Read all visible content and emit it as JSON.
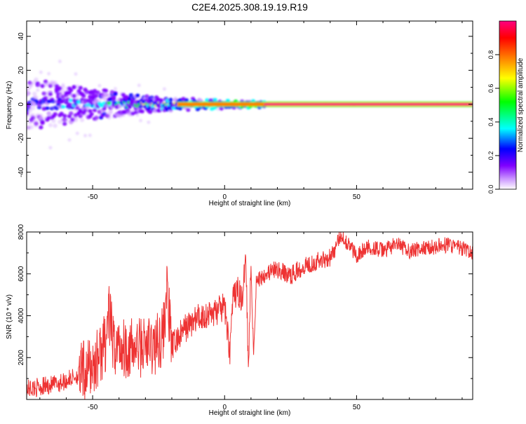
{
  "title": "C2E4.2025.308.19.19.R19",
  "chart_data": [
    {
      "type": "heatmap",
      "xlabel": "Height of straight line (km)",
      "ylabel": "Frequency (Hz)",
      "xlim": [
        -75,
        94
      ],
      "ylim": [
        -50,
        49
      ],
      "x_ticks": [
        -50,
        0,
        50
      ],
      "y_ticks": [
        -40,
        -20,
        0,
        20,
        40
      ],
      "grid": false,
      "colorbar": {
        "label": "Normalized spectral amplitude",
        "range": [
          0,
          1
        ],
        "ticks": [
          "0.0",
          "0.2",
          "0.4",
          "0.6",
          "0.8"
        ],
        "colors": [
          "#ffffff",
          "#cc99ff",
          "#8000ff",
          "#0000ff",
          "#00ffff",
          "#00ff00",
          "#ffff00",
          "#ff8000",
          "#ff0000",
          "#ff0080"
        ]
      },
      "description_series": {
        "center_frequency_hz": 0,
        "spread_profile": [
          {
            "x": -75,
            "spread_hz": 12,
            "peak_amplitude": 0.35
          },
          {
            "x": -50,
            "spread_hz": 7,
            "peak_amplitude": 0.45
          },
          {
            "x": -25,
            "spread_hz": 3,
            "peak_amplitude": 0.7
          },
          {
            "x": 0,
            "spread_hz": 2,
            "peak_amplitude": 0.85
          },
          {
            "x": 20,
            "spread_hz": 1.2,
            "peak_amplitude": 1.0
          },
          {
            "x": 94,
            "spread_hz": 1.2,
            "peak_amplitude": 1.0
          }
        ]
      }
    },
    {
      "type": "line",
      "xlabel": "Height of straight line (km)",
      "ylabel": "SNR (10 * v/v)",
      "xlim": [
        -75,
        94
      ],
      "ylim": [
        0,
        8000
      ],
      "x_ticks": [
        -50,
        0,
        50
      ],
      "y_ticks": [
        2000,
        4000,
        6000,
        8000
      ],
      "grid": false,
      "color": "#ee3333",
      "series": [
        {
          "x": [
            -75,
            -70,
            -65,
            -60,
            -55,
            -50,
            -47,
            -45,
            -44,
            -42,
            -40,
            -35,
            -30,
            -27,
            -25,
            -23,
            -22,
            -20,
            -15,
            -10,
            -5,
            0,
            2,
            3,
            5,
            7,
            8,
            9,
            10,
            11,
            12,
            15,
            20,
            25,
            30,
            35,
            40,
            42,
            44,
            50,
            55,
            60,
            65,
            70,
            75,
            80,
            85,
            90,
            94
          ],
          "y": [
            500,
            600,
            700,
            900,
            1200,
            1600,
            2200,
            2800,
            4200,
            2500,
            2600,
            2400,
            2600,
            2500,
            2800,
            3300,
            5400,
            2500,
            3400,
            3900,
            4100,
            4400,
            2300,
            4700,
            5200,
            4700,
            7500,
            1500,
            6400,
            2200,
            5600,
            6000,
            6200,
            5900,
            6400,
            6600,
            6800,
            7200,
            7900,
            6900,
            7300,
            7100,
            7400,
            7100,
            7200,
            7300,
            7400,
            7200,
            7000
          ]
        }
      ]
    }
  ]
}
